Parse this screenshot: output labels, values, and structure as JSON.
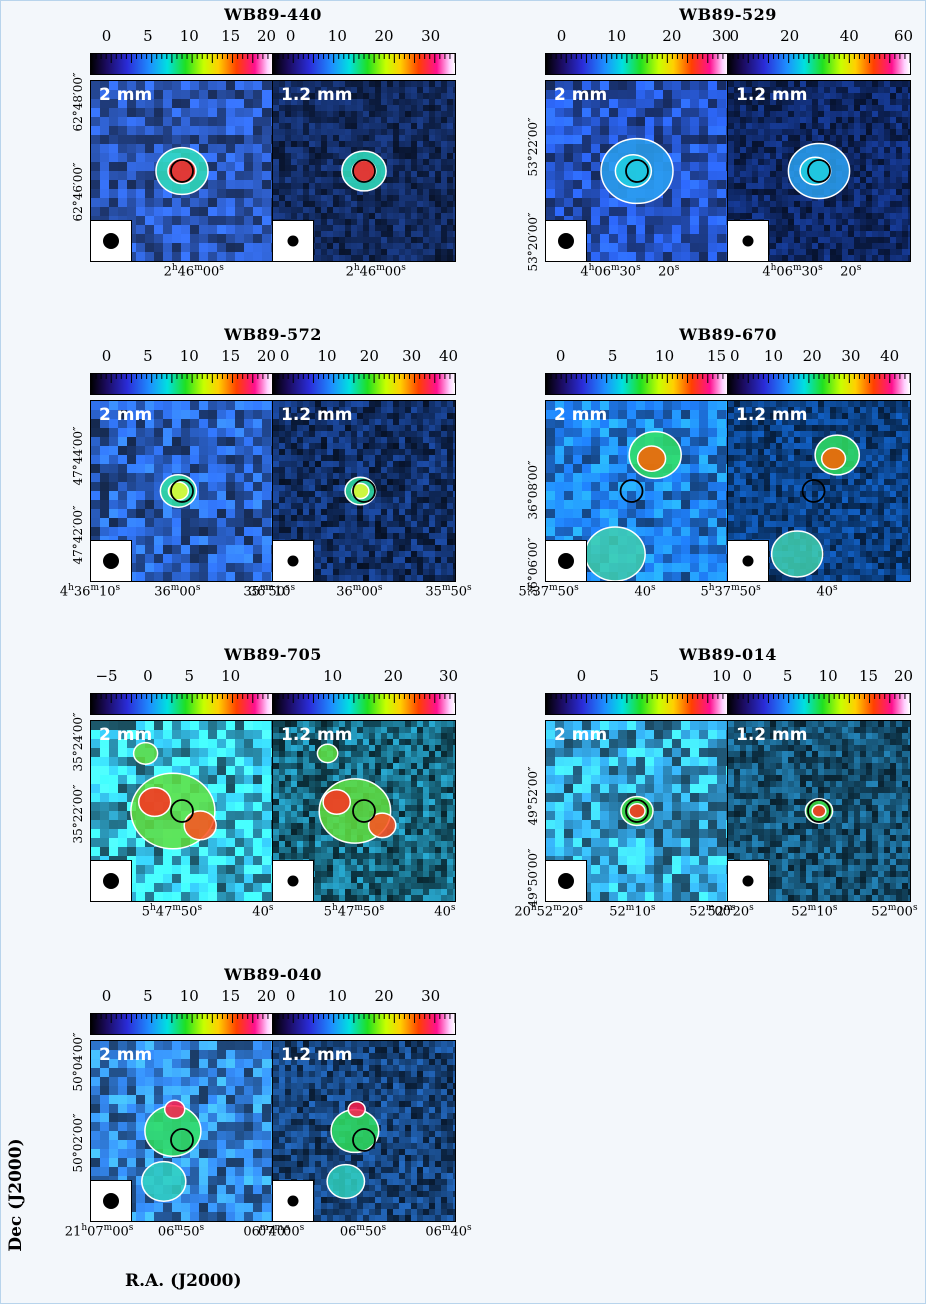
{
  "figure": {
    "xlabel": "R.A. (J2000)",
    "ylabel": "Dec (J2000)",
    "bands": [
      "2 mm",
      "1.2 mm"
    ]
  },
  "colors": {
    "background": "#f3f7fb",
    "contour": "#ffffff",
    "marker": "#000000"
  },
  "sources": [
    {
      "name": "WB89-440",
      "panels": [
        {
          "band": "2 mm",
          "cbar_ticks": [
            "0",
            "5",
            "10",
            "15",
            "20"
          ],
          "cbar_range": [
            -2,
            20
          ],
          "ra_labels": [
            {
              "t": "2<sup>h</sup>46<sup>m</sup>00<sup>s</sup>",
              "at": 0.57
            }
          ],
          "dec_labels": [
            {
              "t": "62°48′00″",
              "at": 0.12
            },
            {
              "t": "62°46′00″",
              "at": 0.62
            }
          ]
        },
        {
          "band": "1.2 mm",
          "cbar_ticks": [
            "0",
            "10",
            "20",
            "30"
          ],
          "cbar_range": [
            -4,
            35
          ],
          "ra_labels": [
            {
              "t": "2<sup>h</sup>46<sup>m</sup>00<sup>s</sup>",
              "at": 0.57
            }
          ],
          "dec_labels": []
        }
      ]
    },
    {
      "name": "WB89-529",
      "panels": [
        {
          "band": "2 mm",
          "cbar_ticks": [
            "0",
            "10",
            "20",
            "30"
          ],
          "cbar_range": [
            -3,
            30
          ],
          "ra_labels": [
            {
              "t": "4<sup>h</sup>06<sup>m</sup>30<sup>s</sup>",
              "at": 0.36
            },
            {
              "t": "20<sup>s</sup>",
              "at": 0.68
            }
          ],
          "dec_labels": [
            {
              "t": "53°22′00″",
              "at": 0.37
            },
            {
              "t": "53°20′00″",
              "at": 0.9
            }
          ]
        },
        {
          "band": "1.2 mm",
          "cbar_ticks": [
            "0",
            "20",
            "40",
            "60"
          ],
          "cbar_range": [
            -1,
            60
          ],
          "ra_labels": [
            {
              "t": "4<sup>h</sup>06<sup>m</sup>30<sup>s</sup>",
              "at": 0.36
            },
            {
              "t": "20<sup>s</sup>",
              "at": 0.68
            }
          ],
          "dec_labels": []
        }
      ]
    },
    {
      "name": "WB89-572",
      "panels": [
        {
          "band": "2 mm",
          "cbar_ticks": [
            "0",
            "5",
            "10",
            "15",
            "20"
          ],
          "cbar_range": [
            -2,
            20
          ],
          "ra_labels": [
            {
              "t": "4<sup>h</sup>36<sup>m</sup>10<sup>s</sup>",
              "at": 0.0
            },
            {
              "t": "36<sup>m</sup>00<sup>s</sup>",
              "at": 0.48
            },
            {
              "t": "35<sup>m</sup>50<sup>s</sup>",
              "at": 0.97
            }
          ],
          "dec_labels": [
            {
              "t": "47°44′00″",
              "at": 0.31
            },
            {
              "t": "47°42′00″",
              "at": 0.75
            }
          ]
        },
        {
          "band": "1.2 mm",
          "cbar_ticks": [
            "0",
            "10",
            "20",
            "30",
            "40"
          ],
          "cbar_range": [
            -3,
            40
          ],
          "ra_labels": [
            {
              "t": "36<sup>m</sup>10<sup>s</sup>",
              "at": 0.0
            },
            {
              "t": "36<sup>m</sup>00<sup>s</sup>",
              "at": 0.48
            },
            {
              "t": "35<sup>m</sup>50<sup>s</sup>",
              "at": 0.97
            }
          ],
          "dec_labels": []
        }
      ]
    },
    {
      "name": "WB89-670",
      "panels": [
        {
          "band": "2 mm",
          "cbar_ticks": [
            "0",
            "5",
            "10",
            "15"
          ],
          "cbar_range": [
            -1.5,
            16
          ],
          "ra_labels": [
            {
              "t": "5<sup>h</sup>37<sup>m</sup>50<sup>s</sup>",
              "at": 0.02
            },
            {
              "t": "40<sup>s</sup>",
              "at": 0.55
            }
          ],
          "dec_labels": [
            {
              "t": "36°08′00″",
              "at": 0.5
            },
            {
              "t": "36°06′00″",
              "at": 0.93
            }
          ]
        },
        {
          "band": "1.2 mm",
          "cbar_ticks": [
            "0",
            "10",
            "20",
            "30",
            "40"
          ],
          "cbar_range": [
            -2,
            45
          ],
          "ra_labels": [
            {
              "t": "5<sup>h</sup>37<sup>m</sup>50<sup>s</sup>",
              "at": 0.02
            },
            {
              "t": "40<sup>s</sup>",
              "at": 0.55
            }
          ],
          "dec_labels": []
        }
      ]
    },
    {
      "name": "WB89-705",
      "panels": [
        {
          "band": "2 mm",
          "cbar_ticks": [
            "−5",
            "0",
            "5",
            "10"
          ],
          "cbar_range": [
            -7,
            15
          ],
          "ra_labels": [
            {
              "t": "5<sup>h</sup>47<sup>m</sup>50<sup>s</sup>",
              "at": 0.45
            },
            {
              "t": "40<sup>s</sup>",
              "at": 0.95
            }
          ],
          "dec_labels": [
            {
              "t": "35°24′00″",
              "at": 0.12
            },
            {
              "t": "35°22′00″",
              "at": 0.52
            }
          ]
        },
        {
          "band": "1.2 mm",
          "cbar_ticks": [
            "10",
            "20",
            "30"
          ],
          "cbar_range": [
            0,
            30
          ],
          "ra_labels": [
            {
              "t": "5<sup>h</sup>47<sup>m</sup>50<sup>s</sup>",
              "at": 0.45
            },
            {
              "t": "40<sup>s</sup>",
              "at": 0.95
            }
          ],
          "dec_labels": []
        }
      ]
    },
    {
      "name": "WB89-014",
      "panels": [
        {
          "band": "2 mm",
          "cbar_ticks": [
            "0",
            "5",
            "10"
          ],
          "cbar_range": [
            -2.5,
            10
          ],
          "ra_labels": [
            {
              "t": "20<sup>h</sup>52<sup>m</sup>20<sup>s</sup>",
              "at": 0.02
            },
            {
              "t": "52<sup>m</sup>10<sup>s</sup>",
              "at": 0.48
            },
            {
              "t": "52<sup>m</sup>00<sup>s</sup>",
              "at": 0.92
            }
          ],
          "dec_labels": [
            {
              "t": "49°52′00″",
              "at": 0.42
            },
            {
              "t": "49°50′00″",
              "at": 0.88
            }
          ]
        },
        {
          "band": "1.2 mm",
          "cbar_ticks": [
            "0",
            "5",
            "10",
            "15",
            "20"
          ],
          "cbar_range": [
            -2.5,
            20
          ],
          "ra_labels": [
            {
              "t": "52<sup>m</sup>20<sup>s</sup>",
              "at": 0.02
            },
            {
              "t": "52<sup>m</sup>10<sup>s</sup>",
              "at": 0.48
            },
            {
              "t": "52<sup>m</sup>00<sup>s</sup>",
              "at": 0.92
            }
          ],
          "dec_labels": []
        }
      ]
    },
    {
      "name": "WB89-040",
      "panels": [
        {
          "band": "2 mm",
          "cbar_ticks": [
            "0",
            "5",
            "10",
            "15",
            "20"
          ],
          "cbar_range": [
            -2,
            20
          ],
          "ra_labels": [
            {
              "t": "21<sup>h</sup>07<sup>m</sup>00<sup>s</sup>",
              "at": 0.05
            },
            {
              "t": "06<sup>m</sup>50<sup>s</sup>",
              "at": 0.5
            },
            {
              "t": "06<sup>m</sup>40<sup>s</sup>",
              "at": 0.97
            }
          ],
          "dec_labels": [
            {
              "t": "50°04′00″",
              "at": 0.12
            },
            {
              "t": "50°02′00″",
              "at": 0.57
            }
          ]
        },
        {
          "band": "1.2 mm",
          "cbar_ticks": [
            "0",
            "10",
            "20",
            "30"
          ],
          "cbar_range": [
            -4,
            35
          ],
          "ra_labels": [
            {
              "t": "07<sup>m</sup>00<sup>s</sup>",
              "at": 0.05
            },
            {
              "t": "06<sup>m</sup>50<sup>s</sup>",
              "at": 0.5
            },
            {
              "t": "06<sup>m</sup>40<sup>s</sup>",
              "at": 0.97
            }
          ],
          "dec_labels": []
        }
      ]
    }
  ]
}
